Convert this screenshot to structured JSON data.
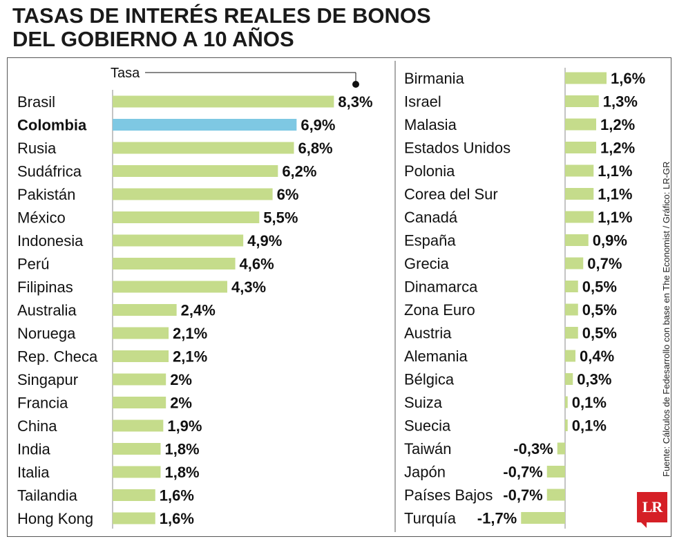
{
  "title_lines": [
    "TASAS DE INTERÉS REALES DE BONOS",
    "DEL GOBIERNO A 10 AÑOS"
  ],
  "legend_label": "Tasa",
  "source": "Fuente: Cálculos de Fedesarrollo con base en The Economist / Gráfico: LR-GR",
  "logo_text": "LR",
  "colors": {
    "bar": "#c5dc8b",
    "highlight": "#7ec8e3",
    "axis": "#888888"
  },
  "chart_data": [
    {
      "type": "bar",
      "orientation": "horizontal",
      "categories": [
        "Brasil",
        "Colombia",
        "Rusia",
        "Sudáfrica",
        "Pakistán",
        "México",
        "Indonesia",
        "Perú",
        "Filipinas",
        "Australia",
        "Noruega",
        "Rep. Checa",
        "Singapur",
        "Francia",
        "China",
        "India",
        "Italia",
        "Tailandia",
        "Hong Kong"
      ],
      "values": [
        8.3,
        6.9,
        6.8,
        6.2,
        6,
        5.5,
        4.9,
        4.6,
        4.3,
        2.4,
        2.1,
        2.1,
        2,
        2,
        1.9,
        1.8,
        1.8,
        1.6,
        1.6
      ],
      "labels": [
        "8,3%",
        "6,9%",
        "6,8%",
        "6,2%",
        "6%",
        "5,5%",
        "4,9%",
        "4,6%",
        "4,3%",
        "2,4%",
        "2,1%",
        "2,1%",
        "2%",
        "2%",
        "1,9%",
        "1,8%",
        "1,8%",
        "1,6%",
        "1,6%"
      ],
      "highlight": "Colombia"
    },
    {
      "type": "bar",
      "orientation": "horizontal",
      "categories": [
        "Birmania",
        "Israel",
        "Malasia",
        "Estados Unidos",
        "Polonia",
        "Corea del Sur",
        "Canadá",
        "España",
        "Grecia",
        "Dinamarca",
        "Zona Euro",
        "Austria",
        "Alemania",
        "Bélgica",
        "Suiza",
        "Suecia",
        "Taiwán",
        "Japón",
        "Países Bajos",
        "Turquía"
      ],
      "values": [
        1.6,
        1.3,
        1.2,
        1.2,
        1.1,
        1.1,
        1.1,
        0.9,
        0.7,
        0.5,
        0.5,
        0.5,
        0.4,
        0.3,
        0.1,
        0.1,
        -0.3,
        -0.7,
        -0.7,
        -1.7
      ],
      "labels": [
        "1,6%",
        "1,3%",
        "1,2%",
        "1,2%",
        "1,1%",
        "1,1%",
        "1,1%",
        "0,9%",
        "0,7%",
        "0,5%",
        "0,5%",
        "0,5%",
        "0,4%",
        "0,3%",
        "0,1%",
        "0,1%",
        "-0,3%",
        "-0,7%",
        "-0,7%",
        "-1,7%"
      ]
    }
  ]
}
